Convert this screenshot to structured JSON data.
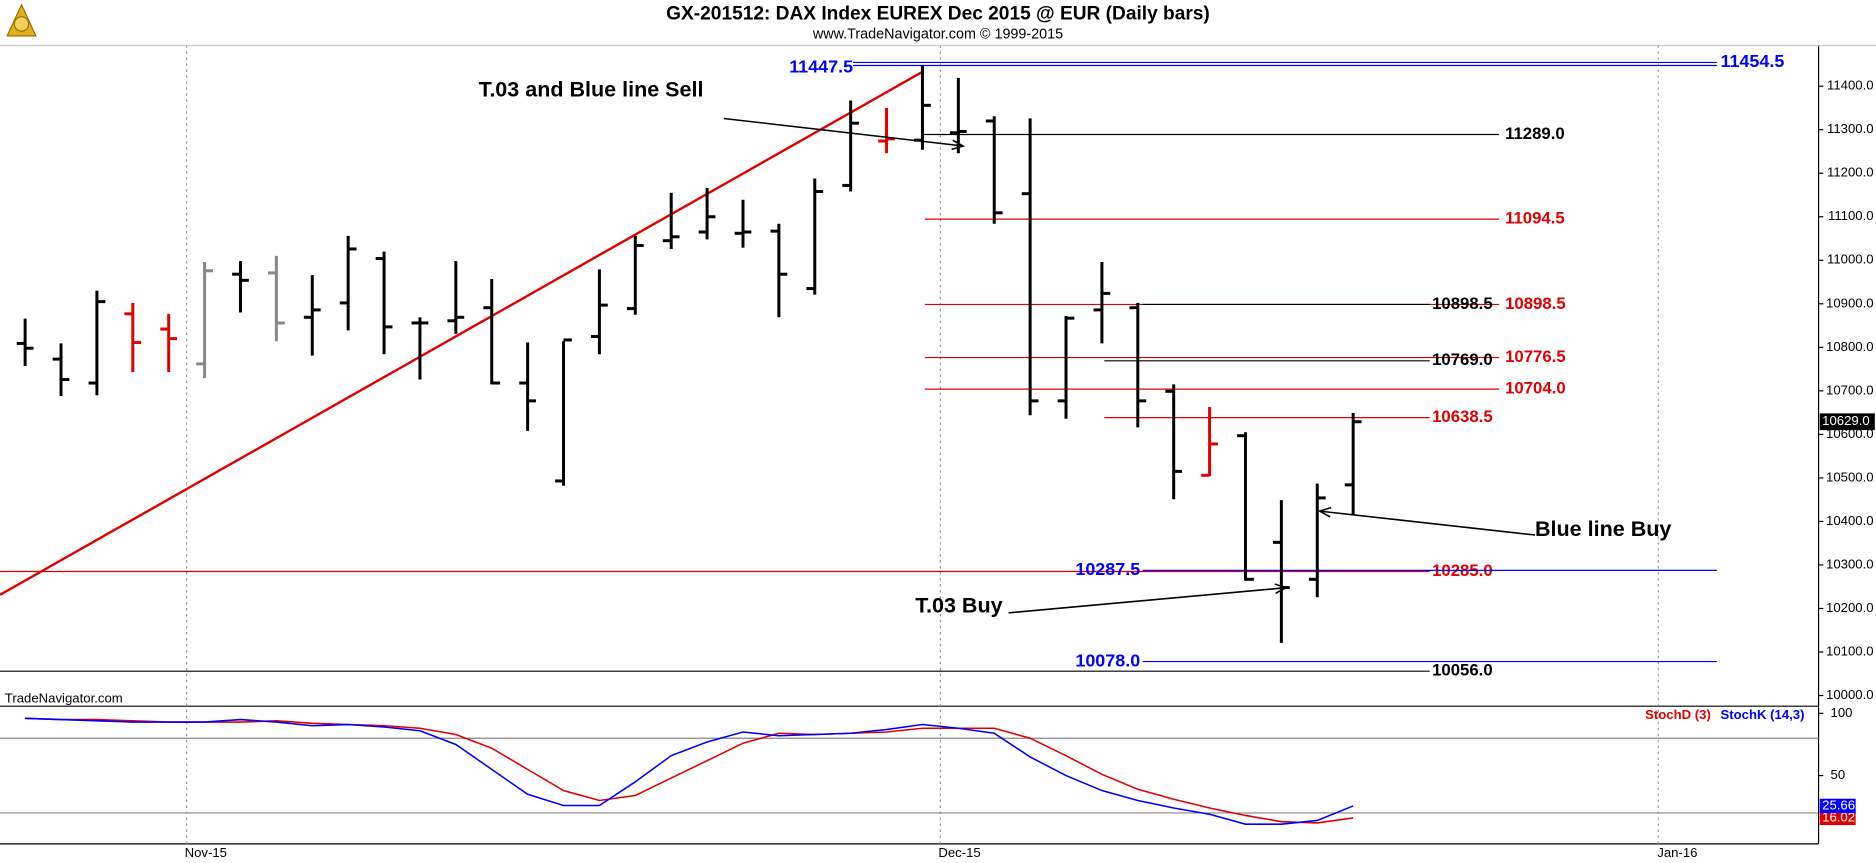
{
  "chart_data": [
    {
      "type": "ohlc",
      "title": "GX-201512:  DAX Index EUREX Dec 2015 @ EUR  (Daily bars)",
      "subtitle": "www.TradeNavigator.com © 1999-2015",
      "watermark": "TradeNavigator.com",
      "categories": [
        null,
        null,
        null,
        null,
        null,
        "Nov-15",
        null,
        null,
        null,
        null,
        null,
        null,
        null,
        null,
        null,
        null,
        null,
        null,
        null,
        null,
        null,
        null,
        null,
        null,
        null,
        null,
        "Dec-15",
        null,
        null,
        null,
        null,
        null,
        null,
        null,
        null,
        null,
        null,
        null,
        null,
        null,
        null,
        null,
        null,
        null,
        null,
        null,
        "Jan-16",
        null,
        null,
        null
      ],
      "open": [
        10809,
        10773,
        10718,
        10877,
        10842,
        10762,
        10968,
        10971,
        10869,
        10902,
        11004,
        10856,
        10861,
        10891,
        10718,
        10493,
        10825,
        10889,
        11045,
        11065,
        11062,
        11067,
        10935,
        11172,
        11274,
        11276,
        11293,
        11320,
        11153,
        10677,
        10886,
        10891,
        10699,
        10506,
        10597,
        10352,
        10267,
        10484,
        null,
        null,
        null,
        null,
        null,
        null,
        null,
        null,
        null,
        null,
        null,
        null
      ],
      "high": [
        10866,
        10809,
        10930,
        10902,
        10877,
        10996,
        10998,
        11010,
        10966,
        11056,
        11020,
        10869,
        10998,
        10957,
        10811,
        10814,
        10979,
        11056,
        11155,
        11166,
        11139,
        11084,
        11188,
        11367,
        11350,
        11447.5,
        11419,
        11331,
        11326,
        10872,
        10996,
        10902,
        10715,
        10663,
        10605,
        10449,
        10487,
        10649,
        null,
        null,
        null,
        null,
        null,
        null,
        null,
        null,
        null,
        null,
        null,
        null
      ],
      "low": [
        10757,
        10688,
        10690,
        10743,
        10743,
        10729,
        10880,
        10814,
        10781,
        10839,
        10784,
        10726,
        10831,
        10715,
        10608,
        10482,
        10784,
        10875,
        11026,
        11048,
        11029,
        10869,
        10921,
        11158,
        11246,
        11254,
        11246,
        11084,
        10644,
        10636,
        10809,
        10616,
        10451,
        10504,
        10264,
        10121,
        10226,
        10415,
        null,
        null,
        null,
        null,
        null,
        null,
        null,
        null,
        null,
        null,
        null,
        null
      ],
      "close": [
        10798,
        10726,
        10905,
        10811,
        10820,
        10976,
        10954,
        10856,
        10886,
        11026,
        10847,
        10856,
        10869,
        10718,
        10677,
        10817,
        10897,
        11034,
        11054,
        11100,
        11065,
        10968,
        11158,
        11315,
        11279,
        11356,
        11296,
        11109,
        10677,
        10867,
        10924,
        10677,
        10515,
        10578,
        10267,
        10248,
        10454,
        10629,
        null,
        null,
        null,
        null,
        null,
        null,
        null,
        null,
        null,
        null,
        null,
        null
      ],
      "bar_colors": [
        "#000",
        "#000",
        "#000",
        "#e00000",
        "#e00000",
        "#888",
        "#000",
        "#888",
        "#000",
        "#000",
        "#000",
        "#000",
        "#000",
        "#000",
        "#000",
        "#000",
        "#000",
        "#000",
        "#000",
        "#000",
        "#000",
        "#000",
        "#000",
        "#000",
        "#e00000",
        "#000",
        "#000",
        "#000",
        "#000",
        "#000",
        "#000",
        "#000",
        "#000",
        "#e00000",
        "#000",
        "#000",
        "#000",
        "#000",
        null,
        null,
        null,
        null,
        null,
        null,
        null,
        null,
        null,
        null,
        null,
        null
      ],
      "last_price": {
        "value": 10629,
        "label": "10629.0"
      },
      "ylim": [
        9975.5,
        11493.5
      ],
      "yticks": [
        {
          "value": 10000,
          "label": "10000.0"
        },
        {
          "value": 10100,
          "label": "10100.0"
        },
        {
          "value": 10200,
          "label": "10200.0"
        },
        {
          "value": 10300,
          "label": "10300.0"
        },
        {
          "value": 10400,
          "label": "10400.0"
        },
        {
          "value": 10500,
          "label": "10500.0"
        },
        {
          "value": 10600,
          "label": "10600.0"
        },
        {
          "value": 10700,
          "label": "10700.0"
        },
        {
          "value": 10800,
          "label": "10800.0"
        },
        {
          "value": 10900,
          "label": "10900.0"
        },
        {
          "value": 11000,
          "label": "11000.0"
        },
        {
          "value": 11100,
          "label": "11100.0"
        },
        {
          "value": 11200,
          "label": "11200.0"
        },
        {
          "value": 11300,
          "label": "11300.0"
        },
        {
          "value": 11400,
          "label": "11400.0"
        }
      ],
      "levels": [
        {
          "value": 11447.5,
          "label": "11447.5",
          "color": "#0000ff"
        },
        {
          "value": 11454.5,
          "label": "11454.5",
          "color": "#0000ff"
        },
        {
          "value": 11289,
          "label": "11289.0",
          "color": "#000000"
        },
        {
          "value": 11094.5,
          "label": "11094.5",
          "color": "#e00000"
        },
        {
          "value": 10898.5,
          "label": "10898.5",
          "color": "#e00000"
        },
        {
          "value": 10898.5,
          "label": "10898.5",
          "color": "#000000"
        },
        {
          "value": 10776.5,
          "label": "10776.5",
          "color": "#e00000"
        },
        {
          "value": 10769,
          "label": "10769.0",
          "color": "#000000"
        },
        {
          "value": 10704,
          "label": "10704.0",
          "color": "#e00000"
        },
        {
          "value": 10638.5,
          "label": "10638.5",
          "color": "#e00000"
        },
        {
          "value": 10285,
          "label": "10285.0",
          "color": "#e00000"
        },
        {
          "value": 10287.5,
          "label": "10287.5",
          "color": "#0000ff"
        },
        {
          "value": 10078,
          "label": "10078.0",
          "color": "#0000ff"
        },
        {
          "value": 10056,
          "label": "10056.0",
          "color": "#000000"
        }
      ],
      "annotations": [
        "T.03 and Blue line Sell",
        "T.03 Buy",
        "Blue line Buy"
      ],
      "trendline_color": "#e00000"
    },
    {
      "type": "line",
      "series": [
        {
          "name": "StochD (3)",
          "color": "#e00000",
          "values": [
            96,
            95,
            95,
            94,
            93,
            93,
            93,
            94,
            92,
            91,
            90,
            88,
            83,
            72,
            55,
            38,
            30,
            34,
            48,
            62,
            76,
            84,
            83,
            84,
            85,
            88,
            88,
            88,
            80,
            66,
            51,
            39,
            31,
            24,
            18,
            13,
            12,
            16.02,
            null,
            null,
            null,
            null,
            null,
            null,
            null,
            null,
            null,
            null,
            null,
            null
          ]
        },
        {
          "name": "StochK (14,3)",
          "color": "#0000ff",
          "values": [
            96,
            95,
            94,
            93,
            93,
            93,
            95,
            93,
            90,
            91,
            89,
            86,
            75,
            55,
            35,
            26,
            26,
            45,
            66,
            77,
            85,
            82,
            83,
            84,
            87,
            91,
            88,
            84,
            65,
            50,
            38,
            30,
            24,
            19,
            11,
            11,
            14,
            25.66,
            null,
            null,
            null,
            null,
            null,
            null,
            null,
            null,
            null,
            null,
            null,
            null
          ]
        }
      ],
      "ylim": [
        -4.8,
        103.8
      ],
      "yticks": [
        50,
        100
      ],
      "levels": [
        80,
        20
      ]
    }
  ]
}
